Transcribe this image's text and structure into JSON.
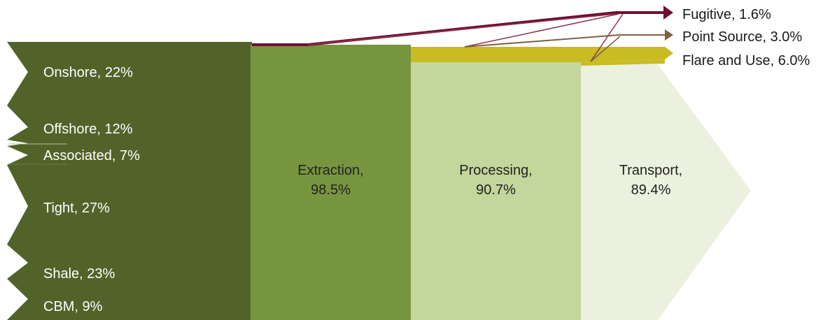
{
  "sources": [
    {
      "label": "Onshore, 22%"
    },
    {
      "label": "Offshore, 12%"
    },
    {
      "label": "Associated, 7%"
    },
    {
      "label": "Tight, 27%"
    },
    {
      "label": "Shale, 23%"
    },
    {
      "label": "CBM, 9%"
    }
  ],
  "stages": [
    {
      "name": "Extraction,",
      "value": "98.5%"
    },
    {
      "name": "Processing,",
      "value": "90.7%"
    },
    {
      "name": "Transport,",
      "value": "89.4%"
    }
  ],
  "losses": [
    {
      "label": "Fugitive, 1.6%"
    },
    {
      "label": "Point Source, 3.0%"
    },
    {
      "label": "Flare and Use, 6.0%"
    }
  ],
  "colors": {
    "sources": "#516329",
    "extraction": "#77953e",
    "processing": "#c3d69b",
    "transport": "#ebf1de",
    "fugitive": "#6e1031",
    "point_source": "#7e6040",
    "flare": "#c9bb22"
  }
}
